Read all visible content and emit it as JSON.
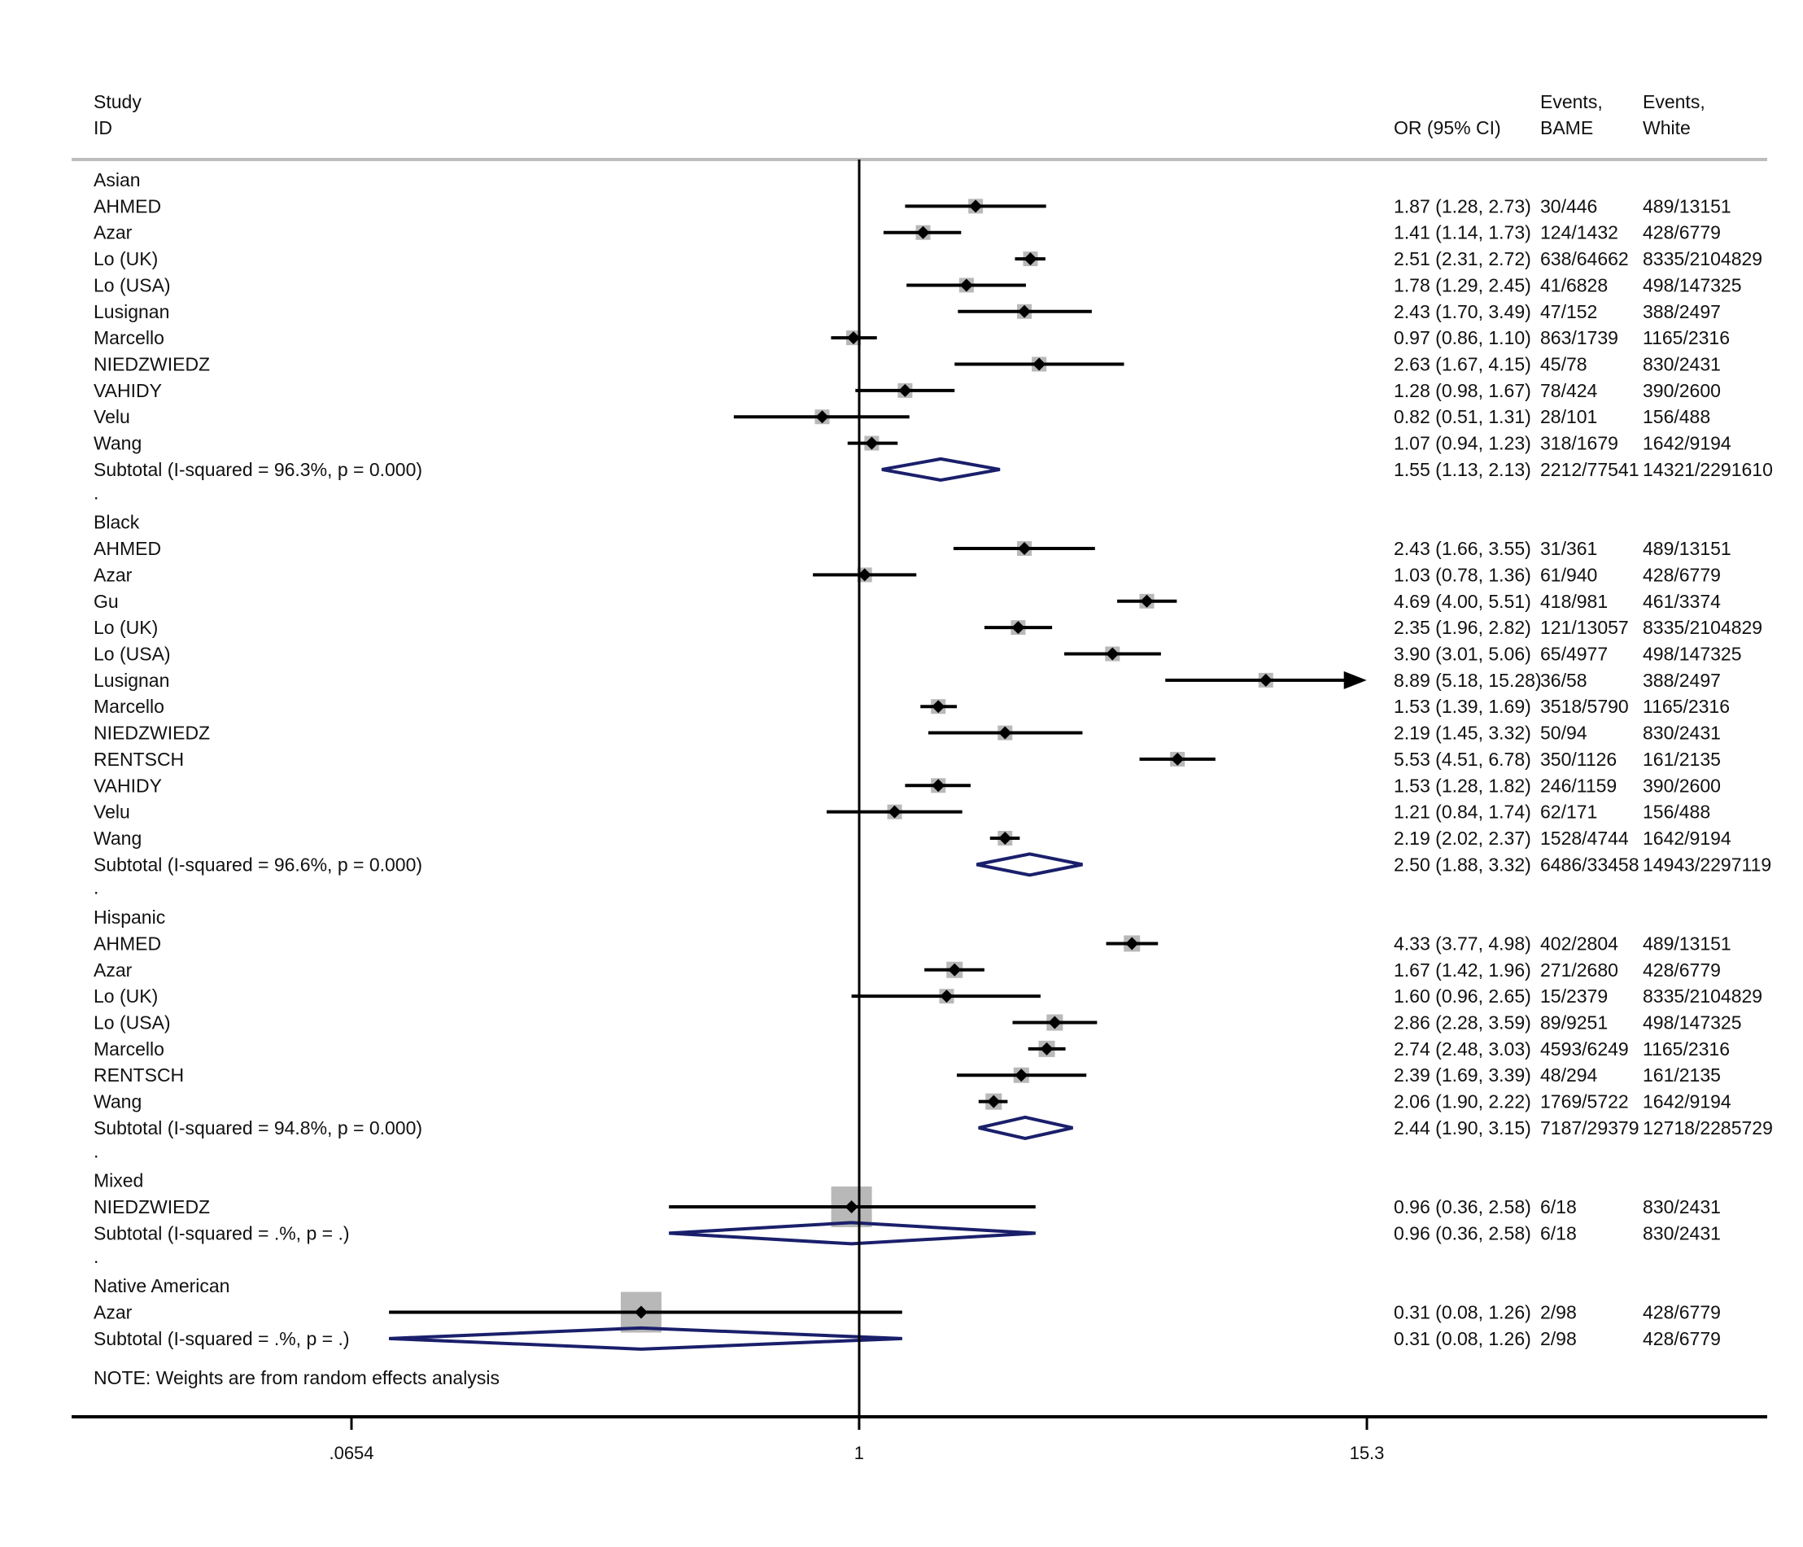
{
  "chart_data": {
    "type": "forest",
    "header": {
      "study": "Study",
      "id": "ID",
      "or_ci": "OR (95% CI)",
      "events1_line1": "Events,",
      "events1_line2": "BAME",
      "events2_line1": "Events,",
      "events2_line2": "White"
    },
    "x_axis": {
      "scale": "log",
      "range": [
        0.0654,
        15.3
      ],
      "ticks": [
        {
          "value": 0.0654,
          "label": ".0654"
        },
        {
          "value": 1,
          "label": "1"
        },
        {
          "value": 15.3,
          "label": "15.3"
        }
      ],
      "null_line": 1
    },
    "groups": [
      {
        "name": "Asian",
        "studies": [
          {
            "id": "AHMED",
            "or": 1.87,
            "lo": 1.28,
            "hi": 2.73,
            "or_text": "1.87 (1.28, 2.73)",
            "bame": "30/446",
            "white": "489/13151",
            "box": 18
          },
          {
            "id": "Azar",
            "or": 1.41,
            "lo": 1.14,
            "hi": 1.73,
            "or_text": "1.41 (1.14, 1.73)",
            "bame": "124/1432",
            "white": "428/6779",
            "box": 18
          },
          {
            "id": "Lo (UK)",
            "or": 2.51,
            "lo": 2.31,
            "hi": 2.72,
            "or_text": "2.51 (2.31, 2.72)",
            "bame": "638/64662",
            "white": "8335/2104829",
            "box": 18
          },
          {
            "id": "Lo (USA)",
            "or": 1.78,
            "lo": 1.29,
            "hi": 2.45,
            "or_text": "1.78 (1.29, 2.45)",
            "bame": "41/6828",
            "white": "498/147325",
            "box": 18
          },
          {
            "id": "Lusignan",
            "or": 2.43,
            "lo": 1.7,
            "hi": 3.49,
            "or_text": "2.43 (1.70, 3.49)",
            "bame": "47/152",
            "white": "388/2497",
            "box": 18
          },
          {
            "id": "Marcello",
            "or": 0.97,
            "lo": 0.86,
            "hi": 1.1,
            "or_text": "0.97 (0.86, 1.10)",
            "bame": "863/1739",
            "white": "1165/2316",
            "box": 18
          },
          {
            "id": "NIEDZWIEDZ",
            "or": 2.63,
            "lo": 1.67,
            "hi": 4.15,
            "or_text": "2.63 (1.67, 4.15)",
            "bame": "45/78",
            "white": "830/2431",
            "box": 18
          },
          {
            "id": "VAHIDY",
            "or": 1.28,
            "lo": 0.98,
            "hi": 1.67,
            "or_text": "1.28 (0.98, 1.67)",
            "bame": "78/424",
            "white": "390/2600",
            "box": 18
          },
          {
            "id": "Velu",
            "or": 0.82,
            "lo": 0.51,
            "hi": 1.31,
            "or_text": "0.82 (0.51, 1.31)",
            "bame": "28/101",
            "white": "156/488",
            "box": 18
          },
          {
            "id": "Wang",
            "or": 1.07,
            "lo": 0.94,
            "hi": 1.23,
            "or_text": "1.07 (0.94, 1.23)",
            "bame": "318/1679",
            "white": "1642/9194",
            "box": 18
          }
        ],
        "subtotal": {
          "label": "Subtotal  (I-squared = 96.3%, p = 0.000)",
          "or": 1.55,
          "lo": 1.13,
          "hi": 2.13,
          "or_text": "1.55 (1.13, 2.13)",
          "bame": "2212/77541",
          "white": "14321/2291610"
        }
      },
      {
        "name": "Black",
        "studies": [
          {
            "id": "AHMED",
            "or": 2.43,
            "lo": 1.66,
            "hi": 3.55,
            "or_text": "2.43 (1.66, 3.55)",
            "bame": "31/361",
            "white": "489/13151",
            "box": 18
          },
          {
            "id": "Azar",
            "or": 1.03,
            "lo": 0.78,
            "hi": 1.36,
            "or_text": "1.03 (0.78, 1.36)",
            "bame": "61/940",
            "white": "428/6779",
            "box": 18
          },
          {
            "id": "Gu",
            "or": 4.69,
            "lo": 4.0,
            "hi": 5.51,
            "or_text": "4.69 (4.00, 5.51)",
            "bame": "418/981",
            "white": "461/3374",
            "box": 18
          },
          {
            "id": "Lo (UK)",
            "or": 2.35,
            "lo": 1.96,
            "hi": 2.82,
            "or_text": "2.35 (1.96, 2.82)",
            "bame": "121/13057",
            "white": "8335/2104829",
            "box": 18
          },
          {
            "id": "Lo (USA)",
            "or": 3.9,
            "lo": 3.01,
            "hi": 5.06,
            "or_text": "3.90 (3.01, 5.06)",
            "bame": "65/4977",
            "white": "498/147325",
            "box": 18
          },
          {
            "id": "Lusignan",
            "or": 8.89,
            "lo": 5.18,
            "hi": 15.28,
            "or_text": "8.89 (5.18, 15.28)",
            "bame": "36/58",
            "white": "388/2497",
            "box": 18
          },
          {
            "id": "Marcello",
            "or": 1.53,
            "lo": 1.39,
            "hi": 1.69,
            "or_text": "1.53 (1.39, 1.69)",
            "bame": "3518/5790",
            "white": "1165/2316",
            "box": 18
          },
          {
            "id": "NIEDZWIEDZ",
            "or": 2.19,
            "lo": 1.45,
            "hi": 3.32,
            "or_text": "2.19 (1.45, 3.32)",
            "bame": "50/94",
            "white": "830/2431",
            "box": 18
          },
          {
            "id": "RENTSCH",
            "or": 5.53,
            "lo": 4.51,
            "hi": 6.78,
            "or_text": "5.53 (4.51, 6.78)",
            "bame": "350/1126",
            "white": "161/2135",
            "box": 18
          },
          {
            "id": "VAHIDY",
            "or": 1.53,
            "lo": 1.28,
            "hi": 1.82,
            "or_text": "1.53 (1.28, 1.82)",
            "bame": "246/1159",
            "white": "390/2600",
            "box": 18
          },
          {
            "id": "Velu",
            "or": 1.21,
            "lo": 0.84,
            "hi": 1.74,
            "or_text": "1.21 (0.84, 1.74)",
            "bame": "62/171",
            "white": "156/488",
            "box": 18
          },
          {
            "id": "Wang",
            "or": 2.19,
            "lo": 2.02,
            "hi": 2.37,
            "or_text": "2.19 (2.02, 2.37)",
            "bame": "1528/4744",
            "white": "1642/9194",
            "box": 18
          }
        ],
        "subtotal": {
          "label": "Subtotal  (I-squared = 96.6%, p = 0.000)",
          "or": 2.5,
          "lo": 1.88,
          "hi": 3.32,
          "or_text": "2.50 (1.88, 3.32)",
          "bame": "6486/33458",
          "white": "14943/2297119"
        }
      },
      {
        "name": "Hispanic",
        "studies": [
          {
            "id": "AHMED",
            "or": 4.33,
            "lo": 3.77,
            "hi": 4.98,
            "or_text": "4.33 (3.77, 4.98)",
            "bame": "402/2804",
            "white": "489/13151",
            "box": 20
          },
          {
            "id": "Azar",
            "or": 1.67,
            "lo": 1.42,
            "hi": 1.96,
            "or_text": "1.67 (1.42, 1.96)",
            "bame": "271/2680",
            "white": "428/6779",
            "box": 20
          },
          {
            "id": "Lo (UK)",
            "or": 1.6,
            "lo": 0.96,
            "hi": 2.65,
            "or_text": "1.60 (0.96, 2.65)",
            "bame": "15/2379",
            "white": "8335/2104829",
            "box": 18
          },
          {
            "id": "Lo (USA)",
            "or": 2.86,
            "lo": 2.28,
            "hi": 3.59,
            "or_text": "2.86 (2.28, 3.59)",
            "bame": "89/9251",
            "white": "498/147325",
            "box": 20
          },
          {
            "id": "Marcello",
            "or": 2.74,
            "lo": 2.48,
            "hi": 3.03,
            "or_text": "2.74 (2.48, 3.03)",
            "bame": "4593/6249",
            "white": "1165/2316",
            "box": 20
          },
          {
            "id": "RENTSCH",
            "or": 2.39,
            "lo": 1.69,
            "hi": 3.39,
            "or_text": "2.39 (1.69, 3.39)",
            "bame": "48/294",
            "white": "161/2135",
            "box": 19
          },
          {
            "id": "Wang",
            "or": 2.06,
            "lo": 1.9,
            "hi": 2.22,
            "or_text": "2.06 (1.90, 2.22)",
            "bame": "1769/5722",
            "white": "1642/9194",
            "box": 20
          }
        ],
        "subtotal": {
          "label": "Subtotal  (I-squared = 94.8%, p = 0.000)",
          "or": 2.44,
          "lo": 1.9,
          "hi": 3.15,
          "or_text": "2.44 (1.90, 3.15)",
          "bame": "7187/29379",
          "white": "12718/2285729"
        }
      },
      {
        "name": "Mixed",
        "studies": [
          {
            "id": "NIEDZWIEDZ",
            "or": 0.96,
            "lo": 0.36,
            "hi": 2.58,
            "or_text": "0.96 (0.36, 2.58)",
            "bame": "6/18",
            "white": "830/2431",
            "box": 50
          }
        ],
        "subtotal": {
          "label": "Subtotal  (I-squared = .%, p = .)",
          "or": 0.96,
          "lo": 0.36,
          "hi": 2.58,
          "or_text": "0.96 (0.36, 2.58)",
          "bame": "6/18",
          "white": "830/2431"
        }
      },
      {
        "name": "Native American",
        "studies": [
          {
            "id": "Azar",
            "or": 0.31,
            "lo": 0.08,
            "hi": 1.26,
            "or_text": "0.31 (0.08, 1.26)",
            "bame": "2/98",
            "white": "428/6779",
            "box": 50
          }
        ],
        "subtotal": {
          "label": "Subtotal  (I-squared = .%, p = .)",
          "or": 0.31,
          "lo": 0.08,
          "hi": 1.26,
          "or_text": "0.31 (0.08, 1.26)",
          "bame": "2/98",
          "white": "428/6779"
        }
      }
    ],
    "separator": ".",
    "note": "NOTE: Weights are from random effects analysis"
  },
  "colors": {
    "text": "#111111",
    "line": "#000000",
    "box": "#b8b8b8",
    "diamond": "#1a1f6b",
    "header_rule": "#bdbdbd"
  }
}
